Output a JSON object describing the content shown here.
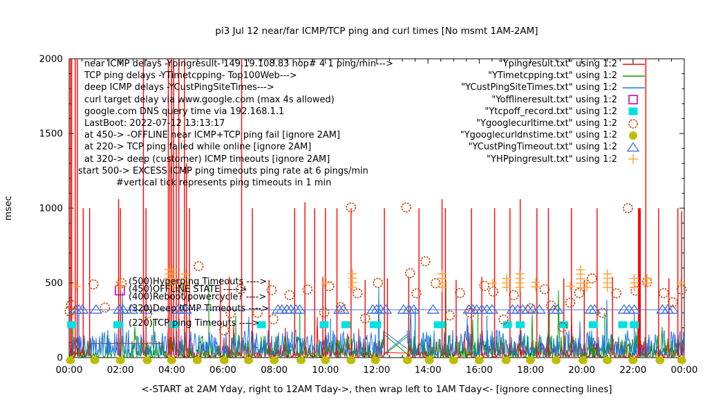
{
  "chart_data": {
    "type": "line",
    "title": "pi3 Jul 12  near/far ICMP/TCP ping and curl times [No msmt 1AM-2AM]",
    "ylabel": "msec",
    "xlabel_caption": "<-START at 2AM Yday, right to 12AM Tday->, then wrap left to 1AM Tday<- [ignore connecting lines]",
    "ylim": [
      0,
      2000
    ],
    "xlim_hours": [
      0,
      24
    ],
    "grid": false,
    "legend_position": "top-right",
    "y_ticks": [
      {
        "v": 0,
        "label": "0"
      },
      {
        "v": 500,
        "label": "500"
      },
      {
        "v": 1000,
        "label": "1000"
      },
      {
        "v": 1500,
        "label": "1500"
      },
      {
        "v": 2000,
        "label": "2000"
      }
    ],
    "x_ticks": [
      {
        "t": 0,
        "label": "00:00"
      },
      {
        "t": 2,
        "label": "02:00"
      },
      {
        "t": 4,
        "label": "04:00"
      },
      {
        "t": 6,
        "label": "06:00"
      },
      {
        "t": 8,
        "label": "08:00"
      },
      {
        "t": 10,
        "label": "10:00"
      },
      {
        "t": 12,
        "label": "12:00"
      },
      {
        "t": 14,
        "label": "14:00"
      },
      {
        "t": 16,
        "label": "16:00"
      },
      {
        "t": 18,
        "label": "18:00"
      },
      {
        "t": 20,
        "label": "20:00"
      },
      {
        "t": 22,
        "label": "22:00"
      },
      {
        "t": 24,
        "label": "00:00"
      }
    ],
    "info_lines": [
      "near ICMP delays -Ypingresult- 149.19.108.83 hop# 4 1 ping/min--->",
      "TCP ping delays -YTimetcpping- Top100Web--->",
      "deep ICMP delays -YCustPingSiteTimes--->",
      "curl target delay via www.google.com (max 4s allowed)",
      "google.com DNS query time via 192.168.1.1",
      "LastBoot: 2022-07-12 13:13:17",
      "at 450-> -OFFLINE near ICMP+TCP ping fail [ignore 2AM]",
      "at 220-> TCP ping failed while online [ignore 2AM]",
      "at 320-> deep (customer) ICMP timeouts [ignore 2AM]",
      "start 500-> EXCESS ICMP ping timeouts ping rate at 6 pings/min",
      "#vertical tick represents ping timeouts in 1 min"
    ],
    "annotations": [
      {
        "text": "(500)Hyperping Timeouts ---->",
        "value": 500
      },
      {
        "text": "(450)OFFLINE STATE ----->",
        "value": 450
      },
      {
        "text": "(400)Reboot/powercycle? ---->",
        "value": 400
      },
      {
        "text": "(320)Deep ICMP Timeouts ---->",
        "value": 320
      },
      {
        "text": "(220)TCP ping Timeouts ---->",
        "value": 220
      }
    ],
    "legend": [
      {
        "label": "\"Ypingresult.txt\" using 1:2",
        "marker": "line",
        "color": "#ff0000"
      },
      {
        "label": "\"YTimetcpping.txt\" using 1:2",
        "marker": "line",
        "color": "#00a000"
      },
      {
        "label": "\"YCustPingSiteTimes.txt\" using 1:2",
        "marker": "line",
        "color": "#1b74e8"
      },
      {
        "label": "\"Yofflineresult.txt\" using 1:2",
        "marker": "square-open",
        "color": "#bf00bf"
      },
      {
        "label": "\"Ytcpoff_record.txt\" using 1:2",
        "marker": "square-filled",
        "color": "#00e0e0"
      },
      {
        "label": "\"Ygooglecurltime.txt\" using 1:2",
        "marker": "circle-open",
        "color": "#bf4400"
      },
      {
        "label": "\"Ygooglecurldnstime.txt\" using 1:2",
        "marker": "circle-filled",
        "color": "#bdbd00"
      },
      {
        "label": "\"YCustPingTimeout.txt\" using 1:2",
        "marker": "triangle-open",
        "color": "#4a74d8"
      },
      {
        "label": "\"YHPpingresult.txt\" using 1:2",
        "marker": "plus",
        "color": "#ffa640"
      }
    ],
    "gap_hours": [
      12.32,
      13.18
    ],
    "series": {
      "near_icmp_red": {
        "color": "#ff0000",
        "noise": {
          "seed": 11,
          "lo": 4,
          "hi": 110,
          "pow": 2.6,
          "burst_p": 0.02,
          "burst_hi": 230
        },
        "flat_segment": {
          "t0": 0.85,
          "t1": 3.65,
          "v": 95
        },
        "spikes": [
          [
            0.05,
            2000
          ],
          [
            0.1,
            2000
          ],
          [
            0.24,
            2000
          ],
          [
            0.32,
            2000
          ],
          [
            0.55,
            1000
          ],
          [
            0.8,
            1000
          ],
          [
            1.93,
            1060
          ],
          [
            2.0,
            1000
          ],
          [
            2.9,
            2000
          ],
          [
            3.0,
            1000
          ],
          [
            3.87,
            2000
          ],
          [
            3.93,
            1350
          ],
          [
            4.0,
            2000
          ],
          [
            4.08,
            2000
          ],
          [
            4.18,
            1400
          ],
          [
            4.28,
            2000
          ],
          [
            4.5,
            2000
          ],
          [
            4.58,
            1300
          ],
          [
            4.7,
            1000
          ],
          [
            5.9,
            530
          ],
          [
            6.25,
            540
          ],
          [
            6.73,
            2000
          ],
          [
            7.15,
            1000
          ],
          [
            7.8,
            520
          ],
          [
            8.8,
            1000
          ],
          [
            9.2,
            1040
          ],
          [
            9.58,
            1000
          ],
          [
            9.9,
            540
          ],
          [
            10.0,
            1000
          ],
          [
            10.45,
            1000
          ],
          [
            11.0,
            1000
          ],
          [
            11.55,
            520
          ],
          [
            12.3,
            1000
          ],
          [
            12.42,
            530
          ],
          [
            13.25,
            540
          ],
          [
            13.65,
            1000
          ],
          [
            14.55,
            1060
          ],
          [
            14.68,
            1000
          ],
          [
            15.1,
            520
          ],
          [
            15.7,
            1000
          ],
          [
            16.1,
            540
          ],
          [
            16.6,
            1000
          ],
          [
            17.2,
            1000
          ],
          [
            17.6,
            1060
          ],
          [
            18.25,
            1000
          ],
          [
            18.7,
            1000
          ],
          [
            19.3,
            530
          ],
          [
            19.6,
            1000
          ],
          [
            20.1,
            520
          ],
          [
            20.6,
            1000
          ],
          [
            21.2,
            540
          ],
          [
            22.25,
            1000,
            4
          ],
          [
            22.5,
            2000
          ],
          [
            23.0,
            1000
          ],
          [
            23.4,
            530
          ],
          [
            23.75,
            1000
          ],
          [
            23.9,
            980
          ]
        ]
      },
      "tcp_ping_green": {
        "color": "#00a000",
        "noise": {
          "seed": 22,
          "lo": 4,
          "hi": 150,
          "pow": 2.4,
          "burst_p": 0.012,
          "burst_hi": 300
        },
        "extra_spikes": [
          [
            0.15,
            205
          ],
          [
            3.3,
            260
          ],
          [
            5.45,
            500
          ],
          [
            6.5,
            280
          ],
          [
            9.0,
            300
          ],
          [
            13.5,
            330
          ],
          [
            14.7,
            520
          ],
          [
            15.95,
            300
          ],
          [
            18.74,
            310
          ],
          [
            20.1,
            500
          ],
          [
            20.9,
            300
          ]
        ]
      },
      "deep_icmp_blue": {
        "color": "#1b74e8",
        "noise": {
          "seed": 33,
          "lo": 15,
          "hi": 185,
          "pow": 2.0,
          "burst_p": 0.01,
          "burst_hi": 300
        },
        "extra_spikes": [
          [
            0.38,
            300
          ],
          [
            10.2,
            260
          ],
          [
            13.5,
            330
          ],
          [
            16.3,
            280
          ],
          [
            22.05,
            300
          ]
        ]
      },
      "offline_magenta_squares": {
        "color": "#bf00bf",
        "points": [
          [
            1.98,
            450
          ]
        ]
      },
      "tcpoff_cyan_squares": {
        "color": "#00e0e0",
        "value": 220,
        "times": [
          0.1,
          1.9,
          4.1,
          7.5,
          9.95,
          10.8,
          11.9,
          12.0,
          14.4,
          14.5,
          17.1,
          17.6,
          19.3,
          20.45,
          21.6,
          22.05
        ]
      },
      "curl_circles": {
        "color": "#bf4400",
        "points": [
          [
            0.02,
            310
          ],
          [
            0.08,
            352
          ],
          [
            0.95,
            490
          ],
          [
            1.4,
            335
          ],
          [
            2.05,
            498
          ],
          [
            3.05,
            295
          ],
          [
            4.4,
            462
          ],
          [
            5.05,
            612
          ],
          [
            6.05,
            182
          ],
          [
            6.3,
            296
          ],
          [
            6.7,
            458
          ],
          [
            7.35,
            300
          ],
          [
            7.9,
            452
          ],
          [
            7.97,
            256
          ],
          [
            8.6,
            418
          ],
          [
            9.3,
            455
          ],
          [
            9.95,
            302
          ],
          [
            10.15,
            478
          ],
          [
            10.6,
            338
          ],
          [
            11.0,
            1005
          ],
          [
            11.25,
            430
          ],
          [
            11.55,
            262
          ],
          [
            12.05,
            500
          ],
          [
            13.15,
            1005
          ],
          [
            13.3,
            565
          ],
          [
            13.55,
            430
          ],
          [
            13.9,
            645
          ],
          [
            14.3,
            498
          ],
          [
            14.85,
            282
          ],
          [
            15.25,
            432
          ],
          [
            15.65,
            300
          ],
          [
            16.2,
            480
          ],
          [
            16.55,
            442
          ],
          [
            16.95,
            255
          ],
          [
            17.35,
            418
          ],
          [
            18.0,
            330
          ],
          [
            18.55,
            458
          ],
          [
            18.8,
            348
          ],
          [
            19.25,
            204
          ],
          [
            19.55,
            368
          ],
          [
            19.9,
            432
          ],
          [
            20.4,
            530
          ],
          [
            20.8,
            300
          ],
          [
            21.35,
            430
          ],
          [
            21.8,
            1000
          ],
          [
            22.1,
            448
          ],
          [
            22.55,
            505
          ],
          [
            23.2,
            432
          ],
          [
            23.55,
            370
          ],
          [
            23.9,
            455
          ]
        ]
      },
      "dns_dots": {
        "color": "#bdbd00",
        "value": 0,
        "times": [
          0.05,
          1.0,
          2.0,
          3.05,
          4.0,
          5.0,
          6.05,
          7.0,
          8.0,
          9.05,
          10.0,
          11.0,
          11.95,
          13.2,
          14.05,
          15.0,
          16.0,
          17.05,
          18.0,
          19.0,
          20.05,
          21.0,
          22.0,
          23.05,
          23.9
        ]
      },
      "cust_timeout_triangles": {
        "color": "#4a74d8",
        "value": 320,
        "times": [
          0.25,
          0.38,
          0.52,
          1.05,
          1.95,
          2.1,
          2.45,
          3.0,
          4.25,
          4.4,
          4.55,
          8.15,
          8.3,
          8.5,
          8.65,
          8.85,
          9.0,
          10.55,
          10.7,
          11.85,
          12.0,
          12.15,
          12.35,
          13.05,
          13.25,
          13.45,
          14.2,
          15.6,
          15.75,
          15.9,
          16.1,
          16.3,
          16.5,
          17.3,
          17.5,
          17.7,
          17.9,
          18.1,
          18.35,
          18.9,
          19.05,
          20.35,
          20.5,
          21.65,
          21.85,
          22.05,
          23.15,
          23.35,
          23.55
        ]
      },
      "hp_plus": {
        "color": "#ffa640",
        "stack_step": 30,
        "stacks": [
          [
            0.27,
            1,
            477
          ],
          [
            1.98,
            2,
            477
          ],
          [
            3.9,
            5,
            470
          ],
          [
            4.05,
            5,
            470
          ],
          [
            4.53,
            4,
            470
          ],
          [
            10.03,
            1,
            500
          ],
          [
            11.06,
            4,
            472
          ],
          [
            14.56,
            4,
            470
          ],
          [
            16.53,
            1,
            498
          ],
          [
            17.07,
            3,
            470
          ],
          [
            17.58,
            4,
            470
          ],
          [
            18.2,
            2,
            473
          ],
          [
            19.55,
            1,
            477
          ],
          [
            19.95,
            5,
            468
          ],
          [
            20.2,
            2,
            470
          ],
          [
            21.0,
            4,
            470
          ],
          [
            22.05,
            3,
            470
          ],
          [
            22.55,
            2,
            500
          ],
          [
            23.87,
            1,
            500
          ]
        ]
      }
    },
    "gap_connectors": [
      {
        "color": "#ff0000",
        "from": [
          12.32,
          35
        ],
        "to": [
          13.18,
          30
        ]
      },
      {
        "color": "#00a000",
        "from": [
          12.32,
          150
        ],
        "to": [
          13.18,
          25
        ]
      },
      {
        "color": "#00a000",
        "from": [
          12.32,
          22
        ],
        "to": [
          13.18,
          140
        ]
      },
      {
        "color": "#1b74e8",
        "from": [
          12.32,
          30
        ],
        "to": [
          13.18,
          155
        ]
      },
      {
        "color": "#1b74e8",
        "from": [
          12.32,
          170
        ],
        "to": [
          13.18,
          60
        ]
      }
    ]
  }
}
